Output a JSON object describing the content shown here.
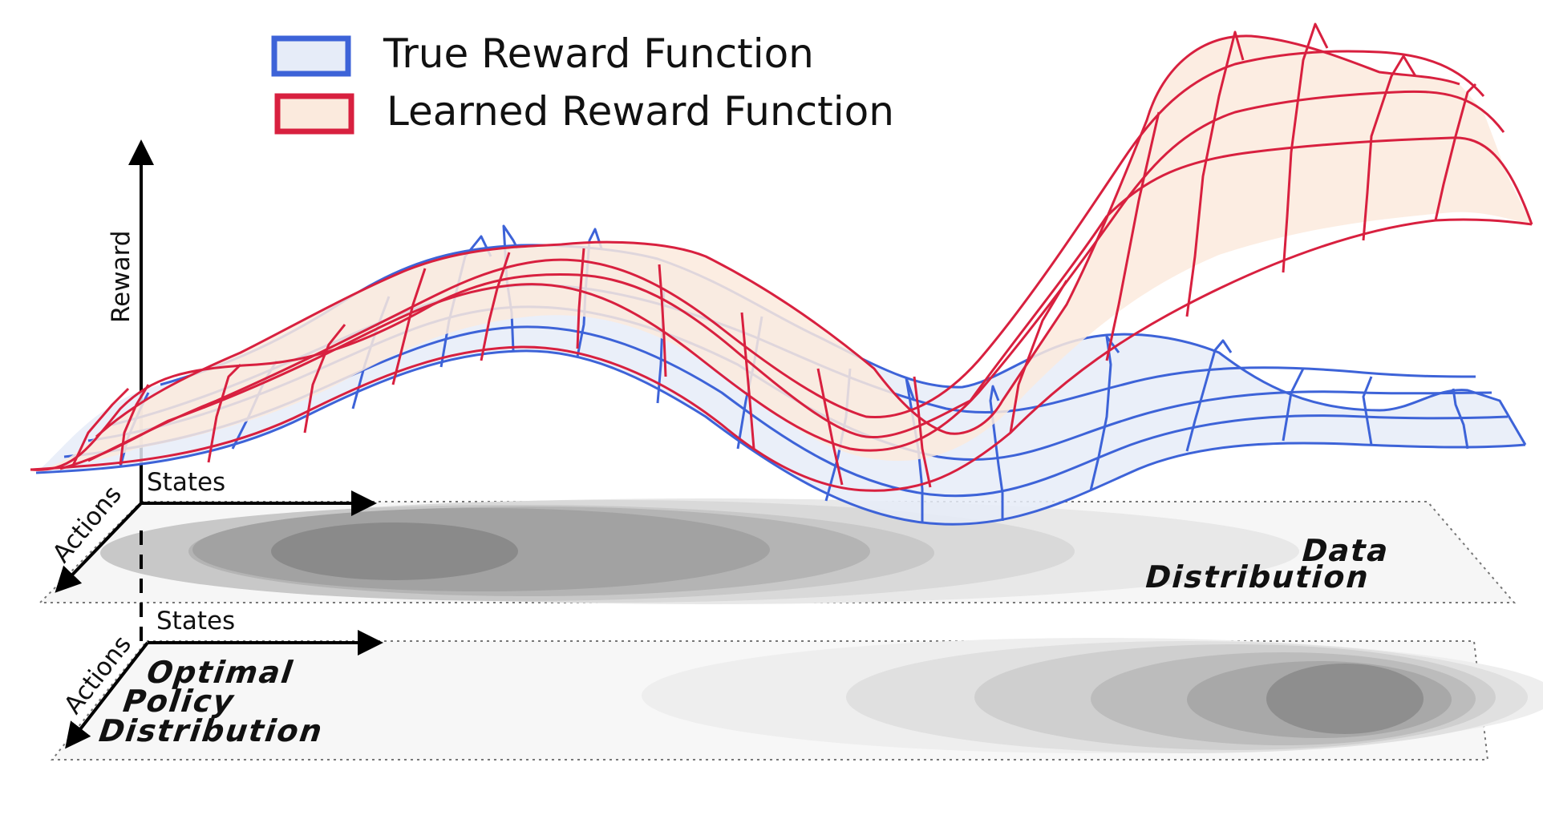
{
  "legend": {
    "true_reward_label": "True Reward Function",
    "learned_reward_label": "Learned Reward Function"
  },
  "axes": {
    "reward_label": "Reward",
    "upper_states_label": "States",
    "upper_actions_label": "Actions",
    "lower_states_label": "States",
    "lower_actions_label": "Actions"
  },
  "planes": {
    "data_distribution_line1": "Data",
    "data_distribution_line2": "Distribution",
    "optimal_policy_line1": "Optimal",
    "optimal_policy_line2": "Policy",
    "optimal_policy_line3": "Distribution"
  },
  "colors": {
    "true_reward_stroke": "#3d63d8",
    "true_reward_fill": "#e6ecf8",
    "learned_reward_stroke": "#d8203f",
    "learned_reward_fill": "#fbeadd",
    "plane_fill": "#f6f6f6",
    "density_darkest": "#8a8a8a"
  }
}
